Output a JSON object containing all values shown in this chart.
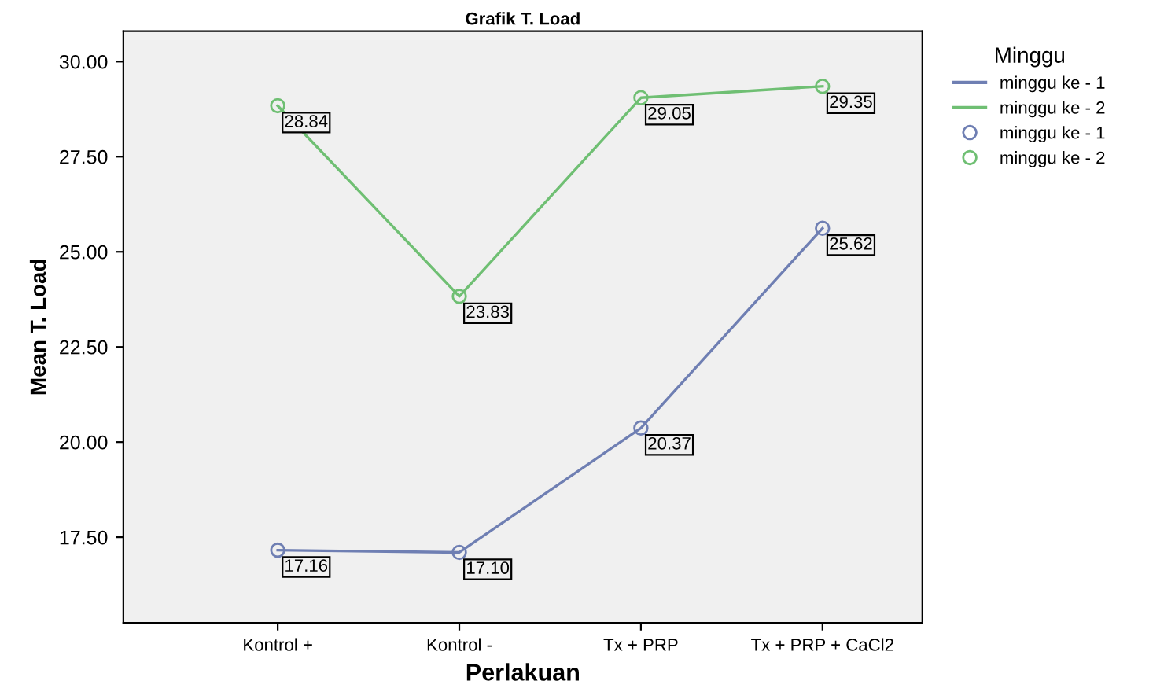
{
  "chart_data": {
    "type": "line",
    "title": "Grafik T. Load",
    "xlabel": "Perlakuan",
    "ylabel": "Mean T. Load",
    "legend_title": "Minggu",
    "categories": [
      "Kontrol +",
      "Kontrol -",
      "Tx + PRP",
      "Tx + PRP + CaCl2"
    ],
    "series": [
      {
        "name": "minggu ke - 1",
        "color": "#6f7fb3",
        "values": [
          17.16,
          17.1,
          20.37,
          25.62
        ],
        "value_labels": [
          "17.16",
          "17.10",
          "20.37",
          "25.62"
        ]
      },
      {
        "name": "minggu ke - 2",
        "color": "#6fbf73",
        "values": [
          28.84,
          23.83,
          29.05,
          29.35
        ],
        "value_labels": [
          "28.84",
          "23.83",
          "29.05",
          "29.35"
        ]
      }
    ],
    "ylim": [
      15.25,
      30.8
    ],
    "yticks": [
      {
        "value": 17.5,
        "label": "17.50"
      },
      {
        "value": 20,
        "label": "20.00"
      },
      {
        "value": 22.5,
        "label": "22.50"
      },
      {
        "value": 25,
        "label": "25.00"
      },
      {
        "value": 27.5,
        "label": "27.50"
      },
      {
        "value": 30,
        "label": "30.00"
      }
    ],
    "marker": "circle",
    "line_style": "solid",
    "legend": "right",
    "grid": false
  }
}
